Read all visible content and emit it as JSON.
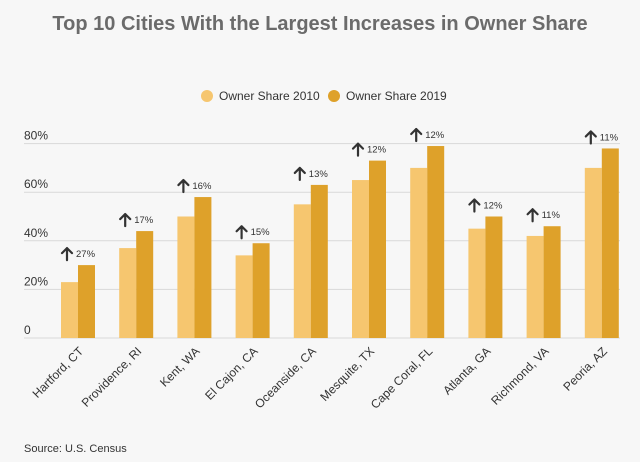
{
  "chart_data": {
    "type": "bar",
    "title": "Top 10 Cities With the Largest Increases in Owner Share",
    "xlabel": "",
    "ylabel": "",
    "ylim": [
      0,
      85
    ],
    "yticks": [
      {
        "value": 0,
        "label": "0"
      },
      {
        "value": 20,
        "label": "20%"
      },
      {
        "value": 40,
        "label": "40%"
      },
      {
        "value": 60,
        "label": "60%"
      },
      {
        "value": 80,
        "label": "80%"
      }
    ],
    "grid": true,
    "legend_position": "top-center",
    "categories": [
      "Hartford, CT",
      "Providence, RI",
      "Kent, WA",
      "El Cajon, CA",
      "Oceanside, CA",
      "Mesquite, TX",
      "Cape Coral, FL",
      "Atlanta, GA",
      "Richmond, VA",
      "Peoria, AZ"
    ],
    "series": [
      {
        "name": "Owner Share 2010",
        "color": "#f6c66f",
        "values": [
          23,
          37,
          50,
          34,
          55,
          65,
          70,
          45,
          42,
          70
        ]
      },
      {
        "name": "Owner Share 2019",
        "color": "#dea12a",
        "values": [
          30,
          44,
          58,
          39,
          63,
          73,
          79,
          50,
          46,
          78
        ]
      }
    ],
    "annotations": [
      "27%",
      "17%",
      "16%",
      "15%",
      "13%",
      "12%",
      "12%",
      "12%",
      "11%",
      "11%"
    ]
  },
  "source": "Source: U.S. Census",
  "colors": {
    "arrow": "#333333",
    "title": "#6b6b6b"
  },
  "icons": {
    "increase": "up-arrow-icon"
  }
}
